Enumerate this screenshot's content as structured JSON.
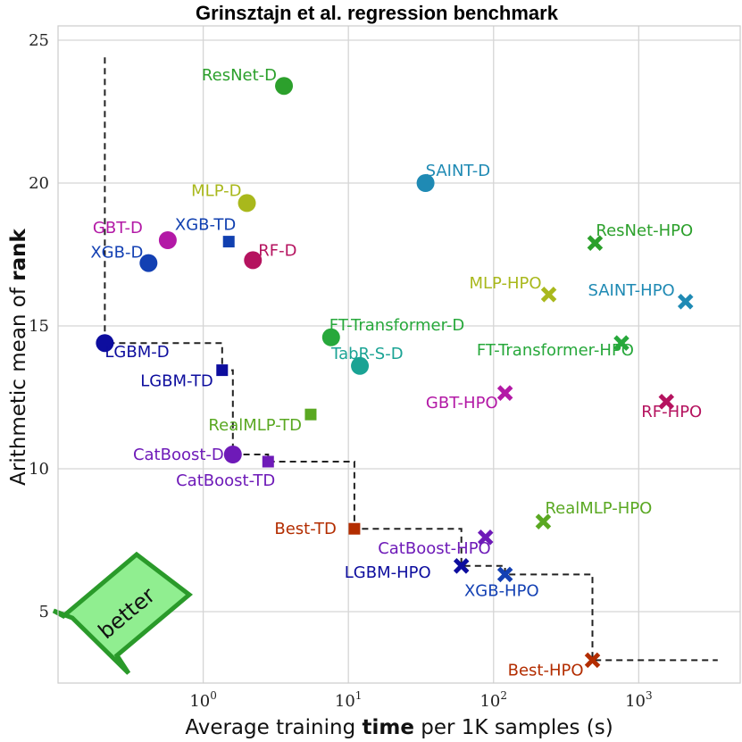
{
  "chart_data": {
    "type": "scatter",
    "title": "Grinsztajn et al. regression benchmark",
    "xlabel": {
      "pre": "Average training ",
      "bold": "time",
      "post": " per 1K samples (s)"
    },
    "ylabel": {
      "pre": "Arithmetic mean of ",
      "bold": "rank"
    },
    "xscale": "log",
    "xlim": [
      0.1,
      5000
    ],
    "ylim": [
      2.5,
      25.5
    ],
    "xticks": [
      {
        "value": 1,
        "base": "10",
        "exp": "0"
      },
      {
        "value": 10,
        "base": "10",
        "exp": "1"
      },
      {
        "value": 100,
        "base": "10",
        "exp": "2"
      },
      {
        "value": 1000,
        "base": "10",
        "exp": "3"
      }
    ],
    "yticks": [
      5,
      10,
      15,
      20,
      25
    ],
    "grid": true,
    "annotation": {
      "text": "better",
      "color": "#90ee90",
      "edge": "#2a9a2a",
      "placement": "bottom-left"
    },
    "points": [
      {
        "name": "ResNet-D",
        "x": 3.6,
        "y": 23.4,
        "marker": "circle",
        "color": "#2ca02c",
        "anchor": "end",
        "dx": -8,
        "dy": -6
      },
      {
        "name": "SAINT-D",
        "x": 34,
        "y": 20.0,
        "marker": "circle",
        "color": "#1f8ab4",
        "anchor": "start",
        "dx": 0,
        "dy": -8
      },
      {
        "name": "MLP-D",
        "x": 2.0,
        "y": 19.3,
        "marker": "circle",
        "color": "#a9b81c",
        "anchor": "end",
        "dx": -6,
        "dy": -8
      },
      {
        "name": "GBT-D",
        "x": 0.57,
        "y": 18.0,
        "marker": "circle",
        "color": "#b319a6",
        "anchor": "end",
        "dx": -28,
        "dy": -8
      },
      {
        "name": "XGB-TD",
        "x": 1.5,
        "y": 17.95,
        "marker": "square",
        "color": "#1140b0",
        "anchor": "end",
        "dx": 8,
        "dy": -13
      },
      {
        "name": "XGB-D",
        "x": 0.42,
        "y": 17.2,
        "marker": "circle",
        "color": "#1340b3",
        "anchor": "end",
        "dx": -6,
        "dy": -6
      },
      {
        "name": "RF-D",
        "x": 2.2,
        "y": 17.3,
        "marker": "circle",
        "color": "#b5135f",
        "anchor": "start",
        "dx": 6,
        "dy": -5
      },
      {
        "name": "ResNet-HPO",
        "x": 500,
        "y": 17.9,
        "marker": "x",
        "color": "#2ca02c",
        "anchor": "start",
        "dx": 1,
        "dy": -8
      },
      {
        "name": "MLP-HPO",
        "x": 240,
        "y": 16.1,
        "marker": "x",
        "color": "#a9b81c",
        "anchor": "end",
        "dx": -8,
        "dy": -7
      },
      {
        "name": "SAINT-HPO",
        "x": 2100,
        "y": 15.85,
        "marker": "x",
        "color": "#1f8ab4",
        "anchor": "end",
        "dx": -12,
        "dy": -7
      },
      {
        "name": "FT-Transformer-D",
        "x": 7.6,
        "y": 14.6,
        "marker": "circle",
        "color": "#27a83b",
        "anchor": "start",
        "dx": -2,
        "dy": -8
      },
      {
        "name": "LGBM-D",
        "x": 0.21,
        "y": 14.4,
        "marker": "circle",
        "color": "#0d0d9e",
        "anchor": "start",
        "dx": 0,
        "dy": 16
      },
      {
        "name": "FT-Transformer-HPO",
        "x": 760,
        "y": 14.4,
        "marker": "x",
        "color": "#27a83b",
        "anchor": "end",
        "dx": 14,
        "dy": 14
      },
      {
        "name": "TabR-S-D",
        "x": 12,
        "y": 13.6,
        "marker": "circle",
        "color": "#1aa394",
        "anchor": "start",
        "dx": -32,
        "dy": -8
      },
      {
        "name": "LGBM-TD",
        "x": 1.35,
        "y": 13.45,
        "marker": "square",
        "color": "#0d0d9e",
        "anchor": "end",
        "dx": -10,
        "dy": 18
      },
      {
        "name": "GBT-HPO",
        "x": 120,
        "y": 12.65,
        "marker": "x",
        "color": "#b319a6",
        "anchor": "end",
        "dx": -8,
        "dy": 17
      },
      {
        "name": "RF-HPO",
        "x": 1550,
        "y": 12.35,
        "marker": "x",
        "color": "#b5135f",
        "anchor": "start",
        "dx": -28,
        "dy": 17
      },
      {
        "name": "RealMLP-TD",
        "x": 5.5,
        "y": 11.9,
        "marker": "square",
        "color": "#5aa822",
        "anchor": "end",
        "dx": -10,
        "dy": 18
      },
      {
        "name": "CatBoost-D",
        "x": 1.6,
        "y": 10.5,
        "marker": "circle",
        "color": "#6e1ab8",
        "anchor": "end",
        "dx": -10,
        "dy": 6
      },
      {
        "name": "CatBoost-TD",
        "x": 2.8,
        "y": 10.25,
        "marker": "square",
        "color": "#6e1ab8",
        "anchor": "end",
        "dx": 8,
        "dy": 27
      },
      {
        "name": "RealMLP-HPO",
        "x": 220,
        "y": 8.15,
        "marker": "x",
        "color": "#5aa822",
        "anchor": "start",
        "dx": 2,
        "dy": -9
      },
      {
        "name": "Best-TD",
        "x": 11,
        "y": 7.9,
        "marker": "square",
        "color": "#b32d00",
        "anchor": "end",
        "dx": -20,
        "dy": 6
      },
      {
        "name": "CatBoost-HPO",
        "x": 88,
        "y": 7.6,
        "marker": "x",
        "color": "#6e1ab8",
        "anchor": "end",
        "dx": 6,
        "dy": 18
      },
      {
        "name": "LGBM-HPO",
        "x": 60,
        "y": 6.6,
        "marker": "x",
        "color": "#0d0d9e",
        "anchor": "end",
        "dx": -34,
        "dy": 13
      },
      {
        "name": "XGB-HPO",
        "x": 120,
        "y": 6.3,
        "marker": "x",
        "color": "#1340b3",
        "anchor": "end",
        "dx": 38,
        "dy": 24
      },
      {
        "name": "Best-HPO",
        "x": 480,
        "y": 3.3,
        "marker": "x",
        "color": "#b32d00",
        "anchor": "end",
        "dx": -10,
        "dy": 17
      }
    ],
    "pareto_front": [
      [
        0.21,
        24.4
      ],
      [
        0.21,
        14.4
      ],
      [
        1.35,
        14.4
      ],
      [
        1.35,
        13.45
      ],
      [
        1.6,
        13.45
      ],
      [
        1.6,
        10.5
      ],
      [
        2.8,
        10.5
      ],
      [
        2.8,
        10.25
      ],
      [
        11,
        10.25
      ],
      [
        11,
        7.9
      ],
      [
        60,
        7.9
      ],
      [
        60,
        6.6
      ],
      [
        120,
        6.6
      ],
      [
        120,
        6.3
      ],
      [
        480,
        6.3
      ],
      [
        480,
        3.3
      ],
      [
        3500,
        3.3
      ]
    ]
  }
}
